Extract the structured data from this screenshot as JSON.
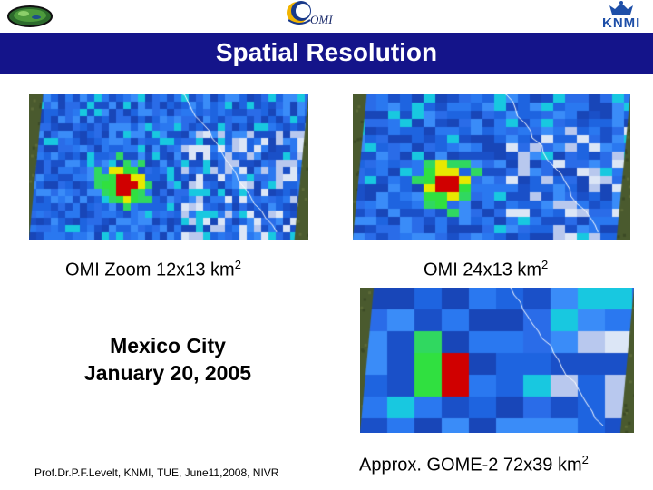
{
  "header": {
    "title": "Spatial Resolution",
    "omi_logo_text": "OMI",
    "knmi_logo_text": "KNMI",
    "title_bar_color": "#14148a"
  },
  "panels": {
    "zoom": {
      "caption": "OMI Zoom 12x13 km",
      "unit_sup": "2"
    },
    "standard": {
      "caption": "OMI 24x13 km",
      "unit_sup": "2"
    },
    "gome2": {
      "caption": "Approx. GOME-2 72x39 km",
      "unit_sup": "2"
    }
  },
  "location": {
    "city": "Mexico City",
    "date": "January 20, 2005"
  },
  "footer": {
    "credit": "Prof.Dr.P.F.Levelt, KNMI, TUE, June11,2008, NIVR"
  }
}
